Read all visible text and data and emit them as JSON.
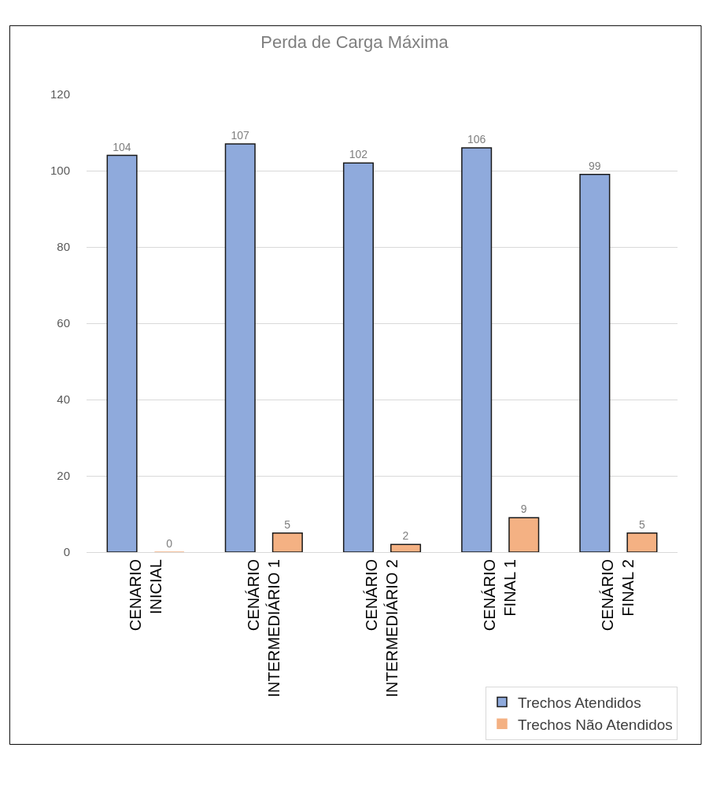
{
  "chart_data": {
    "type": "bar",
    "title": "Perda de Carga Máxima",
    "categories": [
      "CENARIO INICIAL",
      "CENÁRIO INTERMEDIÁRIO 1",
      "CENÁRIO INTERMEDIÁRIO 2",
      "CENÁRIO FINAL 1",
      "CENÁRIO FINAL 2"
    ],
    "series": [
      {
        "name": "Trechos Atendidos",
        "color": "#8faadc",
        "values": [
          104,
          107,
          102,
          106,
          99
        ]
      },
      {
        "name": "Trechos Não Atendidos",
        "color": "#f4b183",
        "values": [
          0,
          5,
          2,
          9,
          5
        ]
      }
    ],
    "ylim": [
      0,
      120
    ],
    "yticks": [
      0,
      20,
      40,
      60,
      80,
      100,
      120
    ],
    "grid": "y",
    "legend": "bottom right",
    "data_labels": true
  }
}
